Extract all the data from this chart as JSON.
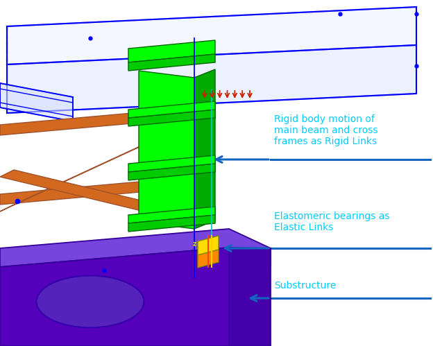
{
  "bg_color": "#ffffff",
  "fig_width": 6.24,
  "fig_height": 4.99,
  "dpi": 100,
  "text_color": "#00CCFF",
  "line_color": "#1565C0",
  "label1_text": "Rigid body motion of\nmain beam and cross\nframes as Rigid Links",
  "label2_text": "Elastomeric bearings as\nElastic Links",
  "label3_text": "Substructure",
  "blue": "#0000FF",
  "green_light": "#00FF00",
  "green_dark": "#00CC00",
  "orange": "#D2691E",
  "orange_dark": "#A0522D",
  "purple_top": "#6633CC",
  "purple_front": "#5500BB",
  "purple_right": "#4400AA",
  "purple_edge": "#330099"
}
